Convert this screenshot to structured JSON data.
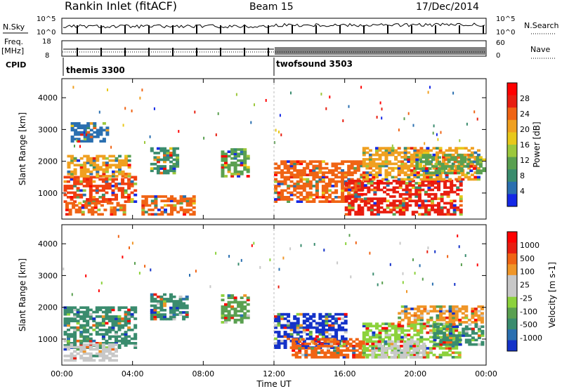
{
  "header": {
    "title": "Rankin Inlet (fitACF)",
    "beam": "Beam 15",
    "date": "17/Dec/2014"
  },
  "summary_panels": {
    "nsky_label": "N.Sky",
    "nsky_ticks": [
      "10^5",
      "10^0"
    ],
    "nsearch_label": "N.Search",
    "freq_label": "Freq.",
    "freq_unit": "[MHz]",
    "freq_ticks": [
      "18",
      "8"
    ],
    "nave_label": "Nave",
    "nave_ticks": [
      "60",
      "0"
    ],
    "cpid_label": "CPID",
    "cpid_segments": [
      {
        "name": "themis 3300",
        "start_hour": 0,
        "end_hour": 12
      },
      {
        "name": "twofsound 3503",
        "start_hour": 12,
        "end_hour": 24
      }
    ]
  },
  "chart_data": [
    {
      "type": "heatmap",
      "name": "power-panel",
      "xlabel": "",
      "ylabel": "Slant Range [km]",
      "xlim": [
        0,
        24
      ],
      "ylim": [
        180,
        4600
      ],
      "x_ticks": [
        "00:00",
        "04:00",
        "08:00",
        "12:00",
        "16:00",
        "20:00",
        "00:00"
      ],
      "x_tick_hours": [
        0,
        4,
        8,
        12,
        16,
        20,
        24
      ],
      "y_ticks": [
        1000,
        2000,
        3000,
        4000
      ],
      "colorbar": {
        "label": "Power [dB]",
        "ticks": [
          "4",
          "8",
          "12",
          "16",
          "20",
          "24",
          "28"
        ],
        "colors": [
          "#1428e6",
          "#2a6fb0",
          "#3a8c6e",
          "#5aa050",
          "#9cc83c",
          "#e8c81a",
          "#f0a020",
          "#f06414",
          "#e81e10",
          "#ff0000"
        ]
      },
      "regions": [
        {
          "t0": 0.1,
          "t1": 4.2,
          "r0": 700,
          "r1": 1500,
          "color": "#f04010"
        },
        {
          "t0": 0.3,
          "t1": 3.8,
          "r0": 1500,
          "r1": 2200,
          "color": "#f0a020"
        },
        {
          "t0": 0.2,
          "t1": 3.5,
          "r0": 300,
          "r1": 700,
          "color": "#f06414"
        },
        {
          "t0": 4.5,
          "t1": 7.5,
          "r0": 300,
          "r1": 900,
          "color": "#f06414"
        },
        {
          "t0": 5.0,
          "t1": 6.5,
          "r0": 1600,
          "r1": 2400,
          "color": "#3a8c6e"
        },
        {
          "t0": 9.0,
          "t1": 10.5,
          "r0": 1500,
          "r1": 2400,
          "color": "#5aa050"
        },
        {
          "t0": 12.0,
          "t1": 17.0,
          "r0": 700,
          "r1": 2000,
          "color": "#f06414"
        },
        {
          "t0": 16.0,
          "t1": 22.5,
          "r0": 300,
          "r1": 1400,
          "color": "#e81e10"
        },
        {
          "t0": 17.0,
          "t1": 23.5,
          "r0": 1400,
          "r1": 2400,
          "color": "#f0a020"
        },
        {
          "t0": 20.0,
          "t1": 23.9,
          "r0": 1600,
          "r1": 2200,
          "color": "#5aa050"
        },
        {
          "t0": 0.5,
          "t1": 2.5,
          "r0": 2600,
          "r1": 3200,
          "color": "#2a6fb0"
        }
      ]
    },
    {
      "type": "heatmap",
      "name": "velocity-panel",
      "xlabel": "Time UT",
      "ylabel": "Slant Range [km]",
      "xlim": [
        0,
        24
      ],
      "ylim": [
        180,
        4600
      ],
      "x_ticks": [
        "00:00",
        "04:00",
        "08:00",
        "12:00",
        "16:00",
        "20:00",
        "00:00"
      ],
      "x_tick_hours": [
        0,
        4,
        8,
        12,
        16,
        20,
        24
      ],
      "y_ticks": [
        1000,
        2000,
        3000,
        4000
      ],
      "colorbar": {
        "label": "Velocity [m s-1]",
        "ticks": [
          "1000",
          "500",
          "100",
          "25",
          "-25",
          "-100",
          "-500",
          "-1000"
        ],
        "colors": [
          "#1432c8",
          "#2a6fb0",
          "#3a8c6e",
          "#5aa050",
          "#8cd23c",
          "#c8c8c8",
          "#c8c8c8",
          "#f09628",
          "#f06414",
          "#e81e10",
          "#ff0000"
        ]
      },
      "regions": [
        {
          "t0": 0.1,
          "t1": 4.2,
          "r0": 700,
          "r1": 2000,
          "color": "#3a8c6e"
        },
        {
          "t0": 0.1,
          "t1": 3.0,
          "r0": 300,
          "r1": 800,
          "color": "#c8c8c8"
        },
        {
          "t0": 5.0,
          "t1": 7.0,
          "r0": 1600,
          "r1": 2400,
          "color": "#3a8c6e"
        },
        {
          "t0": 9.0,
          "t1": 10.5,
          "r0": 1500,
          "r1": 2400,
          "color": "#5aa050"
        },
        {
          "t0": 12.0,
          "t1": 16.0,
          "r0": 700,
          "r1": 1800,
          "color": "#1432c8"
        },
        {
          "t0": 13.0,
          "t1": 17.0,
          "r0": 400,
          "r1": 1000,
          "color": "#f06414"
        },
        {
          "t0": 17.0,
          "t1": 22.5,
          "r0": 400,
          "r1": 1500,
          "color": "#8cd23c"
        },
        {
          "t0": 17.5,
          "t1": 20.5,
          "r0": 400,
          "r1": 900,
          "color": "#c8c8c8"
        },
        {
          "t0": 19.0,
          "t1": 23.8,
          "r0": 1500,
          "r1": 2000,
          "color": "#f09628"
        },
        {
          "t0": 21.0,
          "t1": 23.8,
          "r0": 800,
          "r1": 1500,
          "color": "#3a8c6e"
        }
      ]
    }
  ]
}
